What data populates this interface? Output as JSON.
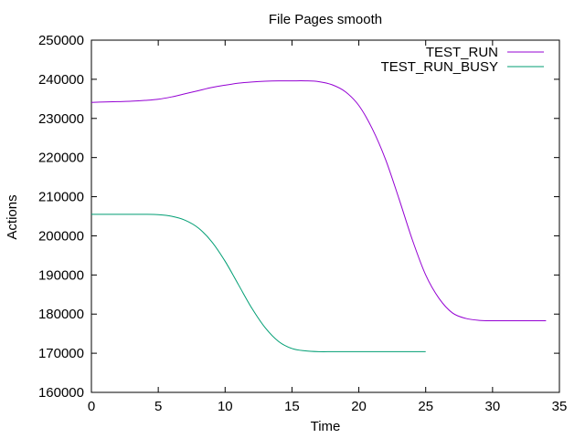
{
  "chart_data": {
    "type": "line",
    "title": "File Pages smooth",
    "xlabel": "Time",
    "ylabel": "Actions",
    "xlim": [
      0,
      35
    ],
    "ylim": [
      160000,
      250000
    ],
    "xticks": [
      0,
      5,
      10,
      15,
      20,
      25,
      30,
      35
    ],
    "yticks": [
      160000,
      170000,
      180000,
      190000,
      200000,
      210000,
      220000,
      230000,
      240000,
      250000
    ],
    "grid": false,
    "legend_position": "top-right",
    "series": [
      {
        "name": "TEST_RUN",
        "color": "#9400d3",
        "x": [
          0,
          1,
          2,
          3,
          4,
          5,
          6,
          7,
          8,
          9,
          10,
          11,
          12,
          13,
          14,
          15,
          16,
          17,
          18,
          19,
          20,
          21,
          22,
          23,
          24,
          25,
          26,
          27,
          28,
          29,
          30,
          31,
          32,
          33,
          34
        ],
        "y": [
          234100,
          234200,
          234300,
          234400,
          234600,
          234900,
          235500,
          236300,
          237100,
          237900,
          238500,
          239000,
          239300,
          239500,
          239600,
          239600,
          239600,
          239400,
          238600,
          236800,
          233300,
          227400,
          219500,
          209500,
          199000,
          190000,
          184000,
          180300,
          178900,
          178400,
          178300,
          178300,
          178300,
          178300,
          178300
        ]
      },
      {
        "name": "TEST_RUN_BUSY",
        "color": "#009e73",
        "x": [
          0,
          1,
          2,
          3,
          4,
          5,
          6,
          7,
          8,
          9,
          10,
          11,
          12,
          13,
          14,
          15,
          16,
          17,
          18,
          19,
          20,
          21,
          22,
          23,
          24,
          25
        ],
        "y": [
          205500,
          205500,
          205500,
          205500,
          205500,
          205400,
          205000,
          204000,
          202000,
          198500,
          193500,
          187500,
          181500,
          176500,
          173000,
          171200,
          170600,
          170400,
          170400,
          170400,
          170400,
          170400,
          170400,
          170400,
          170400,
          170400
        ]
      }
    ]
  }
}
